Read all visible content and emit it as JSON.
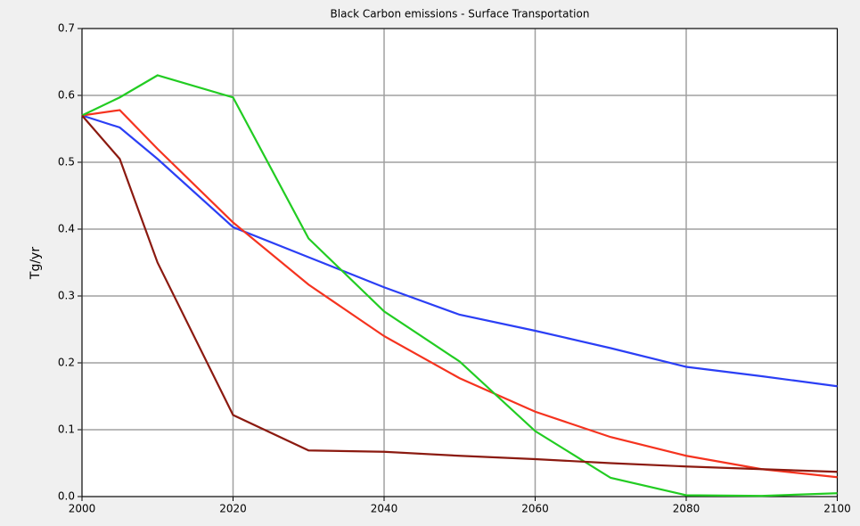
{
  "chart_data": {
    "type": "line",
    "title": "Black Carbon emissions - Surface Transportation",
    "y_label": "Tg/yr",
    "x": [
      2000,
      2005,
      2010,
      2020,
      2030,
      2040,
      2050,
      2060,
      2070,
      2080,
      2090,
      2100
    ],
    "series": [
      {
        "color": "#2b3ff5",
        "values": [
          0.57,
          0.552,
          0.505,
          0.403,
          0.358,
          0.313,
          0.272,
          0.248,
          0.222,
          0.194,
          0.18,
          0.165
        ]
      },
      {
        "color": "#f5331f",
        "values": [
          0.57,
          0.578,
          0.52,
          0.41,
          0.317,
          0.24,
          0.177,
          0.127,
          0.089,
          0.061,
          0.041,
          0.029
        ]
      },
      {
        "color": "#22cc22",
        "values": [
          0.57,
          0.597,
          0.63,
          0.597,
          0.386,
          0.277,
          0.202,
          0.098,
          0.028,
          0.002,
          0.001,
          0.005
        ]
      },
      {
        "color": "#8b1a10",
        "values": [
          0.57,
          0.505,
          0.35,
          0.122,
          0.069,
          0.067,
          0.061,
          0.056,
          0.05,
          0.045,
          0.041,
          0.037
        ]
      }
    ],
    "xlim": [
      2000,
      2100
    ],
    "xticks": [
      2000,
      2020,
      2040,
      2060,
      2080,
      2100
    ],
    "ylim": [
      0,
      0.7
    ],
    "yticks": [
      {
        "value": 0,
        "label": "0.0"
      },
      0.1,
      0.2,
      0.3,
      0.4,
      0.5,
      0.6,
      0.7
    ],
    "grid": true
  }
}
